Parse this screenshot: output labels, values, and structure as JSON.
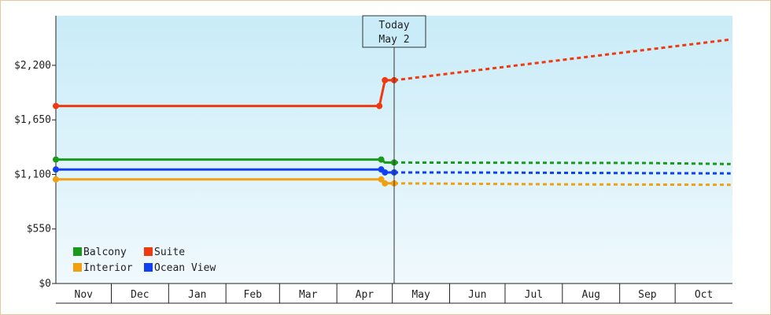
{
  "chart_data": {
    "type": "line",
    "title": "",
    "xlabel": "",
    "ylabel": "",
    "ylim": [
      0,
      2700
    ],
    "y_ticks": [
      {
        "value": 0,
        "label": "$0"
      },
      {
        "value": 550,
        "label": "$550"
      },
      {
        "value": 1100,
        "label": "$1,100"
      },
      {
        "value": 1650,
        "label": "$1,650"
      },
      {
        "value": 2200,
        "label": "$2,200"
      }
    ],
    "x_range": [
      "2023-11-01",
      "2024-10-31"
    ],
    "months": [
      "Nov",
      "Dec",
      "Jan",
      "Feb",
      "Mar",
      "Apr",
      "May",
      "Jun",
      "Jul",
      "Aug",
      "Sep",
      "Oct"
    ],
    "today": {
      "label": "Today",
      "date_label": "May 2",
      "date": "2024-05-02"
    },
    "grid": false,
    "legend_position": "bottom-left",
    "series": [
      {
        "name": "Balcony",
        "color": "#1a9a1a",
        "history": [
          [
            "2023-11-01",
            1250
          ],
          [
            "2024-04-25",
            1250
          ],
          [
            "2024-04-27",
            1220
          ],
          [
            "2024-05-02",
            1220
          ]
        ],
        "history_markers": [
          "2023-11-01",
          "2024-04-25",
          "2024-05-02"
        ],
        "forecast": [
          [
            "2024-05-02",
            1220
          ],
          [
            "2024-09-15",
            1215
          ],
          [
            "2024-10-31",
            1205
          ]
        ]
      },
      {
        "name": "Suite",
        "color": "#ee3a10",
        "history": [
          [
            "2023-11-01",
            1790
          ],
          [
            "2024-04-24",
            1790
          ],
          [
            "2024-04-27",
            2050
          ],
          [
            "2024-05-02",
            2050
          ]
        ],
        "history_markers": [
          "2023-11-01",
          "2024-04-24",
          "2024-04-27",
          "2024-05-02"
        ],
        "forecast": [
          [
            "2024-05-02",
            2050
          ],
          [
            "2024-10-31",
            2460
          ]
        ]
      },
      {
        "name": "Interior",
        "color": "#f0a010",
        "history": [
          [
            "2023-11-01",
            1050
          ],
          [
            "2024-04-25",
            1050
          ],
          [
            "2024-04-27",
            1010
          ],
          [
            "2024-05-02",
            1010
          ]
        ],
        "history_markers": [
          "2023-11-01",
          "2024-04-25",
          "2024-04-27",
          "2024-05-02"
        ],
        "forecast": [
          [
            "2024-05-02",
            1010
          ],
          [
            "2024-08-01",
            1000
          ],
          [
            "2024-10-31",
            995
          ]
        ]
      },
      {
        "name": "Ocean View",
        "color": "#1040f0",
        "history": [
          [
            "2023-11-01",
            1150
          ],
          [
            "2024-04-25",
            1150
          ],
          [
            "2024-04-27",
            1120
          ],
          [
            "2024-05-02",
            1120
          ]
        ],
        "history_markers": [
          "2023-11-01",
          "2024-04-25",
          "2024-04-27",
          "2024-05-02"
        ],
        "forecast": [
          [
            "2024-05-02",
            1120
          ],
          [
            "2024-06-01",
            1120
          ],
          [
            "2024-10-31",
            1110
          ]
        ]
      }
    ],
    "legend_order": [
      "Balcony",
      "Suite",
      "Interior",
      "Ocean View"
    ]
  }
}
